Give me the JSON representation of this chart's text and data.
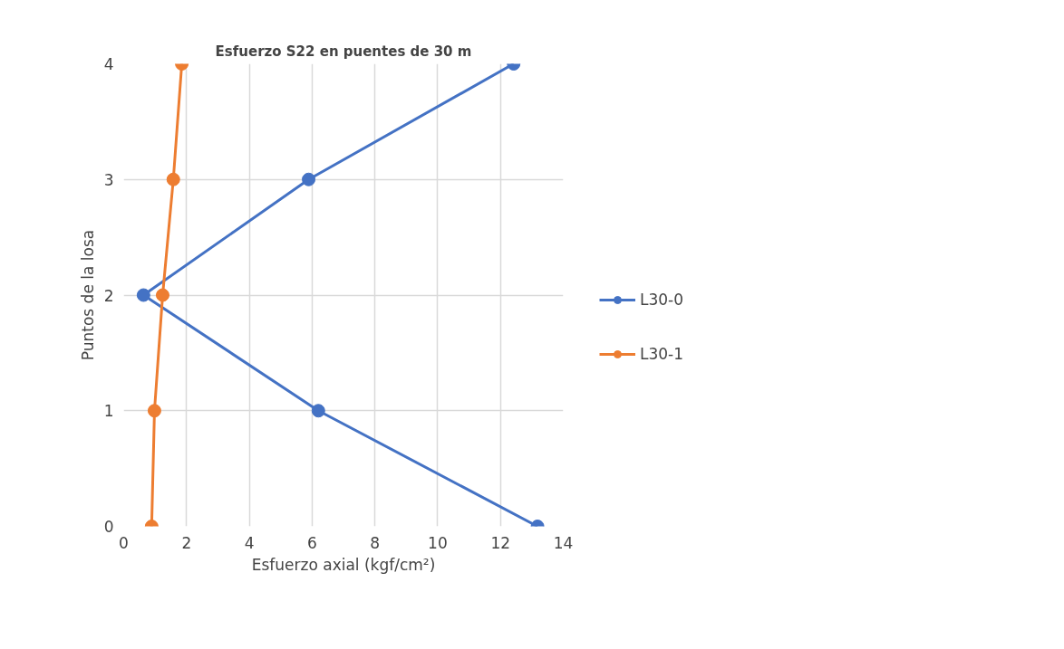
{
  "chart_data": {
    "type": "line",
    "title": "Esfuerzo S22 en puentes de 30 m",
    "xlabel": "Esfuerzo axial (kgf/cm²)",
    "ylabel": "Puntos de la losa",
    "series": [
      {
        "name": "L30-0",
        "color": "#4472c4",
        "x": [
          12.42,
          5.89,
          0.63,
          6.2,
          13.18
        ],
        "values": [
          4,
          3,
          2,
          1,
          0
        ]
      },
      {
        "name": "L30-1",
        "color": "#ed7d31",
        "x": [
          1.85,
          1.58,
          1.24,
          0.98,
          0.89
        ],
        "values": [
          4,
          3,
          2,
          1,
          0
        ]
      }
    ],
    "xlim": [
      0,
      14
    ],
    "xticks": [
      0,
      2,
      4,
      6,
      8,
      10,
      12,
      14
    ],
    "ylim": [
      0,
      4
    ],
    "yticks": [
      0,
      1,
      2,
      3,
      4
    ],
    "grid": true,
    "legend": "right",
    "marker": "circle",
    "line_style": "solid"
  }
}
